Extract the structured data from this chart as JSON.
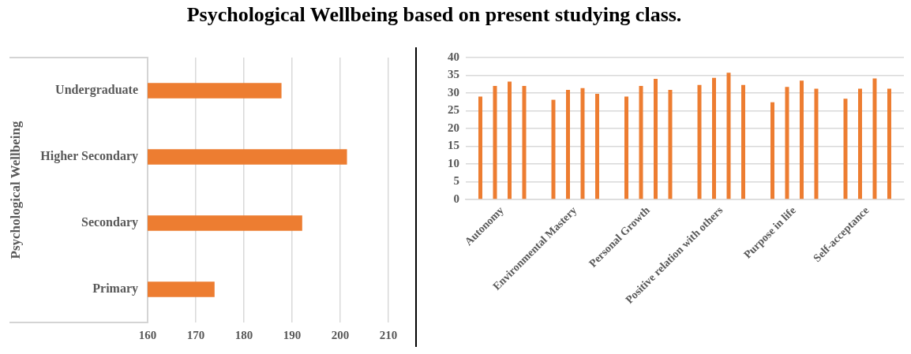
{
  "chart_data": [
    {
      "type": "bar",
      "orientation": "horizontal",
      "title": "Psychological Wellbeing based on present studying class.",
      "ylabel": "Psychological Wellbeing",
      "categories": [
        "Undergraduate",
        "Higher Secondary",
        "Secondary",
        "Primary"
      ],
      "values": [
        187.8,
        201.4,
        192.1,
        173.9
      ],
      "color": "#ed7d31",
      "xlim": [
        160,
        210
      ],
      "xticks": [
        160,
        170,
        180,
        190,
        200,
        210
      ],
      "grid": "x"
    },
    {
      "type": "bar",
      "categories": [
        "Autonomy",
        "Environmental Mastery",
        "Personal Growth",
        "Positive relation with others",
        "Purpose in life",
        "Self-acceptance"
      ],
      "series": [
        {
          "color": "#ed7d31",
          "values": [
            29.0,
            28.1,
            29.0,
            32.3,
            27.4,
            28.4
          ]
        },
        {
          "color": "#ed7d31",
          "values": [
            32.0,
            30.9,
            32.0,
            34.3,
            31.7,
            31.2
          ]
        },
        {
          "color": "#ed7d31",
          "values": [
            33.2,
            31.4,
            34.0,
            35.7,
            33.5,
            34.1
          ]
        },
        {
          "color": "#ed7d31",
          "values": [
            32.0,
            29.8,
            30.9,
            32.3,
            31.2,
            31.2
          ]
        }
      ],
      "ylim": [
        0,
        40
      ],
      "yticks": [
        0,
        5,
        10,
        15,
        20,
        25,
        30,
        35,
        40
      ],
      "grid": "y"
    }
  ]
}
